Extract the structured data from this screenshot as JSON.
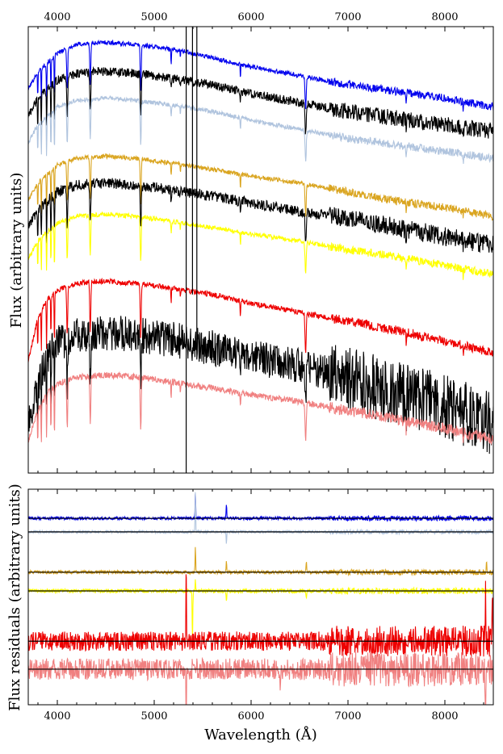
{
  "chart_data": [
    {
      "type": "line",
      "panel": "spectra",
      "title": "",
      "xlabel": "",
      "ylabel": "Flux (arbitrary units)",
      "xlim": [
        3700,
        8500
      ],
      "x_ticks": [
        4000,
        5000,
        6000,
        7000,
        8000
      ],
      "x_tick_labels": [
        "4000",
        "5000",
        "6000",
        "7000",
        "8000"
      ],
      "x_ticks_position": "top",
      "y_ticks": [],
      "ylim": [
        0,
        100
      ],
      "grid": false,
      "legend": "none",
      "series": [
        {
          "color": "#0000ee",
          "noise": 0.5,
          "absorption": 1.0,
          "values": [
            [
              3700,
              86
            ],
            [
              3800,
              90
            ],
            [
              3900,
              92
            ],
            [
              4000,
              94
            ],
            [
              4200,
              96
            ],
            [
              4500,
              96.5
            ],
            [
              4800,
              96
            ],
            [
              5000,
              95.5
            ],
            [
              5300,
              94.5
            ],
            [
              5600,
              93
            ],
            [
              6000,
              91
            ],
            [
              6500,
              89
            ],
            [
              7000,
              87
            ],
            [
              7500,
              85.5
            ],
            [
              8000,
              84
            ],
            [
              8500,
              82
            ]
          ]
        },
        {
          "color": "#000000",
          "noise": 1.0,
          "absorption": 1.0,
          "values": [
            [
              3700,
              80
            ],
            [
              3800,
              84
            ],
            [
              3900,
              86
            ],
            [
              4000,
              88
            ],
            [
              4200,
              89.5
            ],
            [
              4500,
              90
            ],
            [
              4800,
              89.5
            ],
            [
              5000,
              89
            ],
            [
              5300,
              88
            ],
            [
              5600,
              87
            ],
            [
              6000,
              85
            ],
            [
              6500,
              83
            ],
            [
              7000,
              81
            ],
            [
              7500,
              79.5
            ],
            [
              8000,
              78
            ],
            [
              8500,
              76.5
            ]
          ]
        },
        {
          "color": "#b0c4de",
          "noise": 0.5,
          "absorption": 1.0,
          "values": [
            [
              3700,
              74
            ],
            [
              3800,
              78
            ],
            [
              3900,
              80
            ],
            [
              4000,
              82
            ],
            [
              4200,
              83.5
            ],
            [
              4500,
              84
            ],
            [
              4800,
              83.5
            ],
            [
              5000,
              83
            ],
            [
              5300,
              82
            ],
            [
              5600,
              81
            ],
            [
              6000,
              79
            ],
            [
              6500,
              77
            ],
            [
              7000,
              75
            ],
            [
              7500,
              73.5
            ],
            [
              8000,
              72
            ],
            [
              8500,
              70.5
            ]
          ]
        },
        {
          "color": "#daa520",
          "noise": 0.5,
          "absorption": 1.0,
          "values": [
            [
              3700,
              61
            ],
            [
              3800,
              65
            ],
            [
              3900,
              67
            ],
            [
              4000,
              69
            ],
            [
              4200,
              70.5
            ],
            [
              4500,
              71
            ],
            [
              4800,
              70.5
            ],
            [
              5000,
              70
            ],
            [
              5300,
              69
            ],
            [
              5600,
              68
            ],
            [
              6000,
              66.5
            ],
            [
              6500,
              65
            ],
            [
              7000,
              63
            ],
            [
              7500,
              61
            ],
            [
              8000,
              59.5
            ],
            [
              8500,
              57.5
            ]
          ]
        },
        {
          "color": "#000000",
          "noise": 1.2,
          "absorption": 1.0,
          "values": [
            [
              3700,
              55
            ],
            [
              3800,
              59
            ],
            [
              3900,
              61
            ],
            [
              4000,
              63
            ],
            [
              4200,
              64.5
            ],
            [
              4500,
              65
            ],
            [
              4800,
              64.5
            ],
            [
              5000,
              64
            ],
            [
              5300,
              63
            ],
            [
              5600,
              62
            ],
            [
              6000,
              60.5
            ],
            [
              6500,
              58.5
            ],
            [
              7000,
              57
            ],
            [
              7500,
              55
            ],
            [
              8000,
              53
            ],
            [
              8500,
              51
            ]
          ]
        },
        {
          "color": "#ffff00",
          "noise": 0.5,
          "absorption": 1.0,
          "values": [
            [
              3700,
              48
            ],
            [
              3800,
              52
            ],
            [
              3900,
              54
            ],
            [
              4000,
              56
            ],
            [
              4200,
              57.5
            ],
            [
              4500,
              58
            ],
            [
              4800,
              57.5
            ],
            [
              5000,
              57
            ],
            [
              5300,
              56
            ],
            [
              5600,
              55
            ],
            [
              6000,
              53.5
            ],
            [
              6500,
              52
            ],
            [
              7000,
              50
            ],
            [
              7500,
              48.5
            ],
            [
              8000,
              46.5
            ],
            [
              8500,
              44.5
            ]
          ]
        },
        {
          "color": "#ee0000",
          "noise": 0.6,
          "absorption": 1.2,
          "values": [
            [
              3700,
              25
            ],
            [
              3800,
              35
            ],
            [
              3900,
              39
            ],
            [
              4000,
              41
            ],
            [
              4200,
              42.5
            ],
            [
              4500,
              43
            ],
            [
              4800,
              42.5
            ],
            [
              5000,
              42
            ],
            [
              5300,
              41
            ],
            [
              5600,
              40
            ],
            [
              6000,
              38
            ],
            [
              6500,
              36
            ],
            [
              7000,
              34
            ],
            [
              7500,
              32
            ],
            [
              8000,
              29.5
            ],
            [
              8500,
              27
            ]
          ]
        },
        {
          "color": "#000000",
          "noise": 4.0,
          "absorption": 1.2,
          "values": [
            [
              3700,
              10
            ],
            [
              3800,
              20
            ],
            [
              3900,
              26
            ],
            [
              4000,
              29
            ],
            [
              4200,
              31
            ],
            [
              4500,
              31.5
            ],
            [
              4800,
              31
            ],
            [
              5000,
              30.5
            ],
            [
              5300,
              29.5
            ],
            [
              5600,
              28
            ],
            [
              6000,
              26
            ],
            [
              6500,
              24
            ],
            [
              7000,
              21
            ],
            [
              7500,
              18
            ],
            [
              8000,
              15
            ],
            [
              8500,
              11
            ]
          ]
        },
        {
          "color": "#f08080",
          "noise": 0.7,
          "absorption": 1.2,
          "values": [
            [
              3700,
              7
            ],
            [
              3800,
              14
            ],
            [
              3900,
              18
            ],
            [
              4000,
              20
            ],
            [
              4200,
              21.5
            ],
            [
              4500,
              22
            ],
            [
              4800,
              21.5
            ],
            [
              5000,
              21
            ],
            [
              5300,
              20
            ],
            [
              5600,
              19
            ],
            [
              6000,
              17.5
            ],
            [
              6500,
              16
            ],
            [
              7000,
              14
            ],
            [
              7500,
              12
            ],
            [
              8000,
              10
            ],
            [
              8500,
              7.5
            ]
          ]
        }
      ],
      "sharp_lines": [
        {
          "x": 5330,
          "from": 0,
          "to": 100,
          "color": "#000000"
        },
        {
          "x": 5440,
          "from": 30,
          "to": 100,
          "color": "#000000"
        },
        {
          "x": 5395,
          "from": 40,
          "to": 100,
          "color": "#000000"
        }
      ]
    },
    {
      "type": "line",
      "panel": "residuals",
      "title": "",
      "xlabel": "Wavelength (Å)",
      "ylabel": "Flux residuals (arbitrary units)",
      "xlim": [
        3700,
        8500
      ],
      "x_ticks": [
        4000,
        5000,
        6000,
        7000,
        8000
      ],
      "x_tick_labels": [
        "4000",
        "5000",
        "6000",
        "7000",
        "8000"
      ],
      "y_ticks": [],
      "ylim": [
        0,
        100
      ],
      "grid": false,
      "legend": "none",
      "baselines": [
        86.5,
        80.2,
        61.5,
        52.8,
        29.5,
        16.5
      ],
      "series": [
        {
          "color": "#0000ee",
          "baseline": 86.5,
          "noise": 0.7,
          "spikes": [
            [
              5425,
              12
            ],
            [
              5745,
              7
            ]
          ]
        },
        {
          "color": "#b0c4de",
          "baseline": 80.2,
          "noise": 0.6,
          "spikes": [
            [
              5425,
              20
            ],
            [
              5745,
              -6
            ]
          ]
        },
        {
          "color": "#daa520",
          "baseline": 61.5,
          "noise": 0.8,
          "spikes": [
            [
              5425,
              12
            ],
            [
              5745,
              6
            ],
            [
              6570,
              5
            ],
            [
              8430,
              6
            ]
          ]
        },
        {
          "color": "#ffff00",
          "baseline": 52.8,
          "noise": 0.9,
          "spikes": [
            [
              5395,
              -25
            ],
            [
              5425,
              6
            ],
            [
              5745,
              -5
            ],
            [
              6570,
              -4
            ]
          ]
        },
        {
          "color": "#ee0000",
          "baseline": 29.5,
          "noise": 4.5,
          "spikes": [
            [
              5330,
              42
            ],
            [
              8420,
              30
            ],
            [
              8490,
              20
            ]
          ]
        },
        {
          "color": "#f08080",
          "baseline": 16.5,
          "noise": 5.0,
          "spikes": [
            [
              5330,
              -30
            ],
            [
              6300,
              -12
            ],
            [
              8420,
              -22
            ]
          ]
        }
      ]
    }
  ]
}
